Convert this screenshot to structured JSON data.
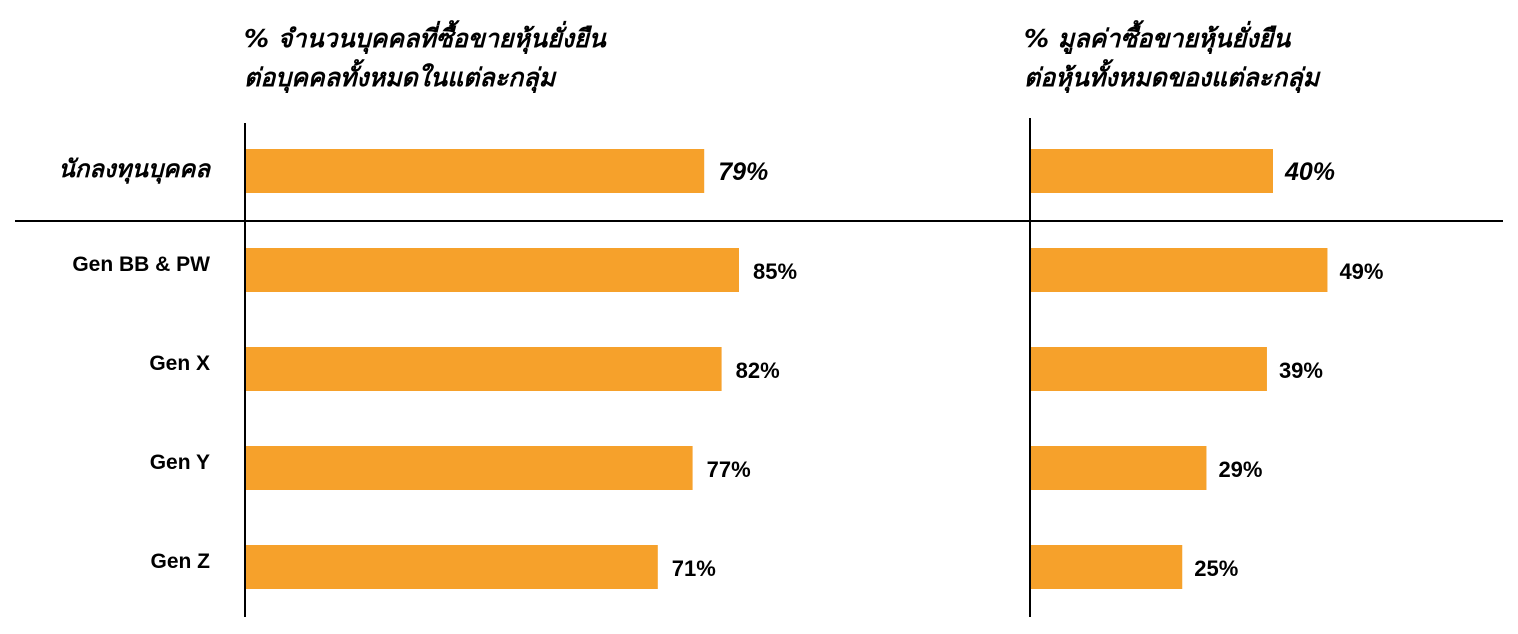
{
  "colors": {
    "bar": "#f6a12b",
    "highlight_text": "#0f0fd8",
    "text": "#000000",
    "axis": "#000000"
  },
  "chart_data": [
    {
      "type": "bar",
      "orientation": "horizontal",
      "title_lines": [
        "% จำนวนบุคคลที่ซื้อขายหุ้นยั่งยืน",
        "ต่อบุคคลทั้งหมดในแต่ละกลุ่ม"
      ],
      "categories": [
        "นักลงทุนบุคคล",
        "Gen BB & PW",
        "Gen X",
        "Gen Y",
        "Gen Z"
      ],
      "values": [
        79,
        85,
        82,
        77,
        71
      ],
      "value_labels": [
        "79%",
        "85%",
        "82%",
        "77%",
        "71%"
      ],
      "highlight_index": 0,
      "unit": "%",
      "grid": false
    },
    {
      "type": "bar",
      "orientation": "horizontal",
      "title_lines": [
        "% มูลค่าซื้อขายหุ้นยั่งยืน",
        "ต่อหุ้นทั้งหมดของแต่ละกลุ่ม"
      ],
      "categories": [
        "นักลงทุนบุคคล",
        "Gen BB & PW",
        "Gen X",
        "Gen Y",
        "Gen Z"
      ],
      "values": [
        40,
        49,
        39,
        29,
        25
      ],
      "value_labels": [
        "40%",
        "49%",
        "39%",
        "29%",
        "25%"
      ],
      "highlight_index": 0,
      "unit": "%",
      "grid": false
    }
  ]
}
